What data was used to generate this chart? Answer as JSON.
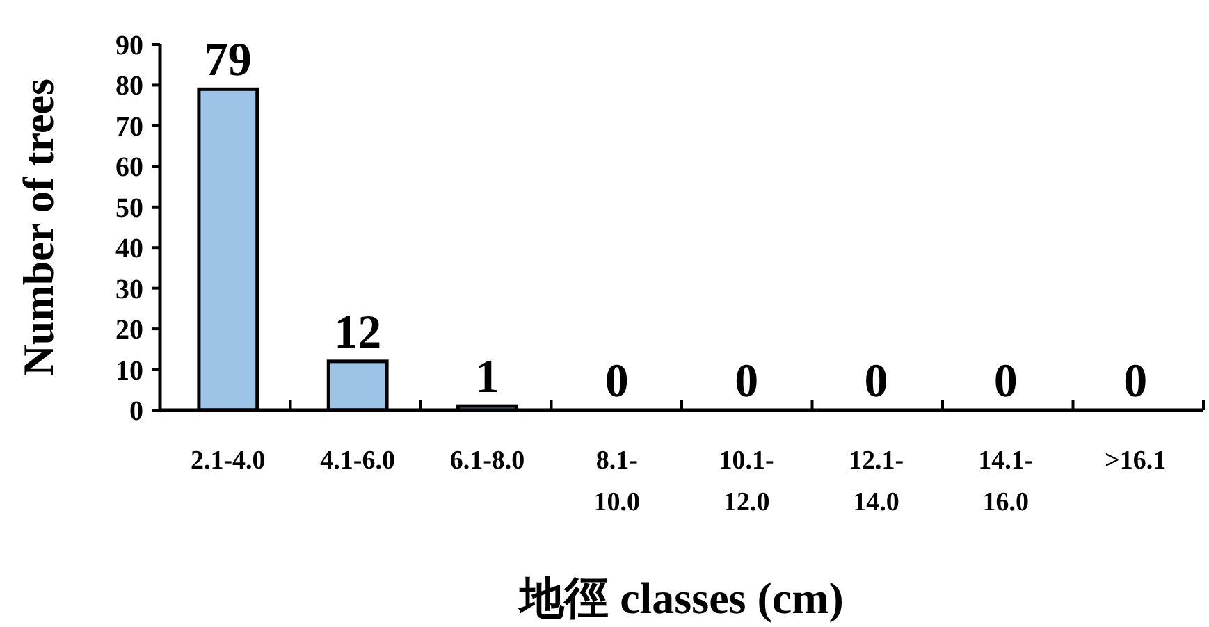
{
  "chart_data": {
    "type": "bar",
    "xlabel": "地徑 classes (cm)",
    "ylabel": "Number of trees",
    "categories": [
      "2.1-4.0",
      "4.1-6.0",
      "6.1-8.0",
      "8.1-10.0",
      "10.1-12.0",
      "12.1-14.0",
      "14.1-16.0",
      ">16.1"
    ],
    "values": [
      79,
      12,
      1,
      0,
      0,
      0,
      0,
      0
    ],
    "color": "#9dc3e6",
    "ylim": [
      0,
      90
    ],
    "yticks": [
      0,
      10,
      20,
      30,
      40,
      50,
      60,
      70,
      80,
      90
    ],
    "data_labels": true,
    "grid": false
  }
}
